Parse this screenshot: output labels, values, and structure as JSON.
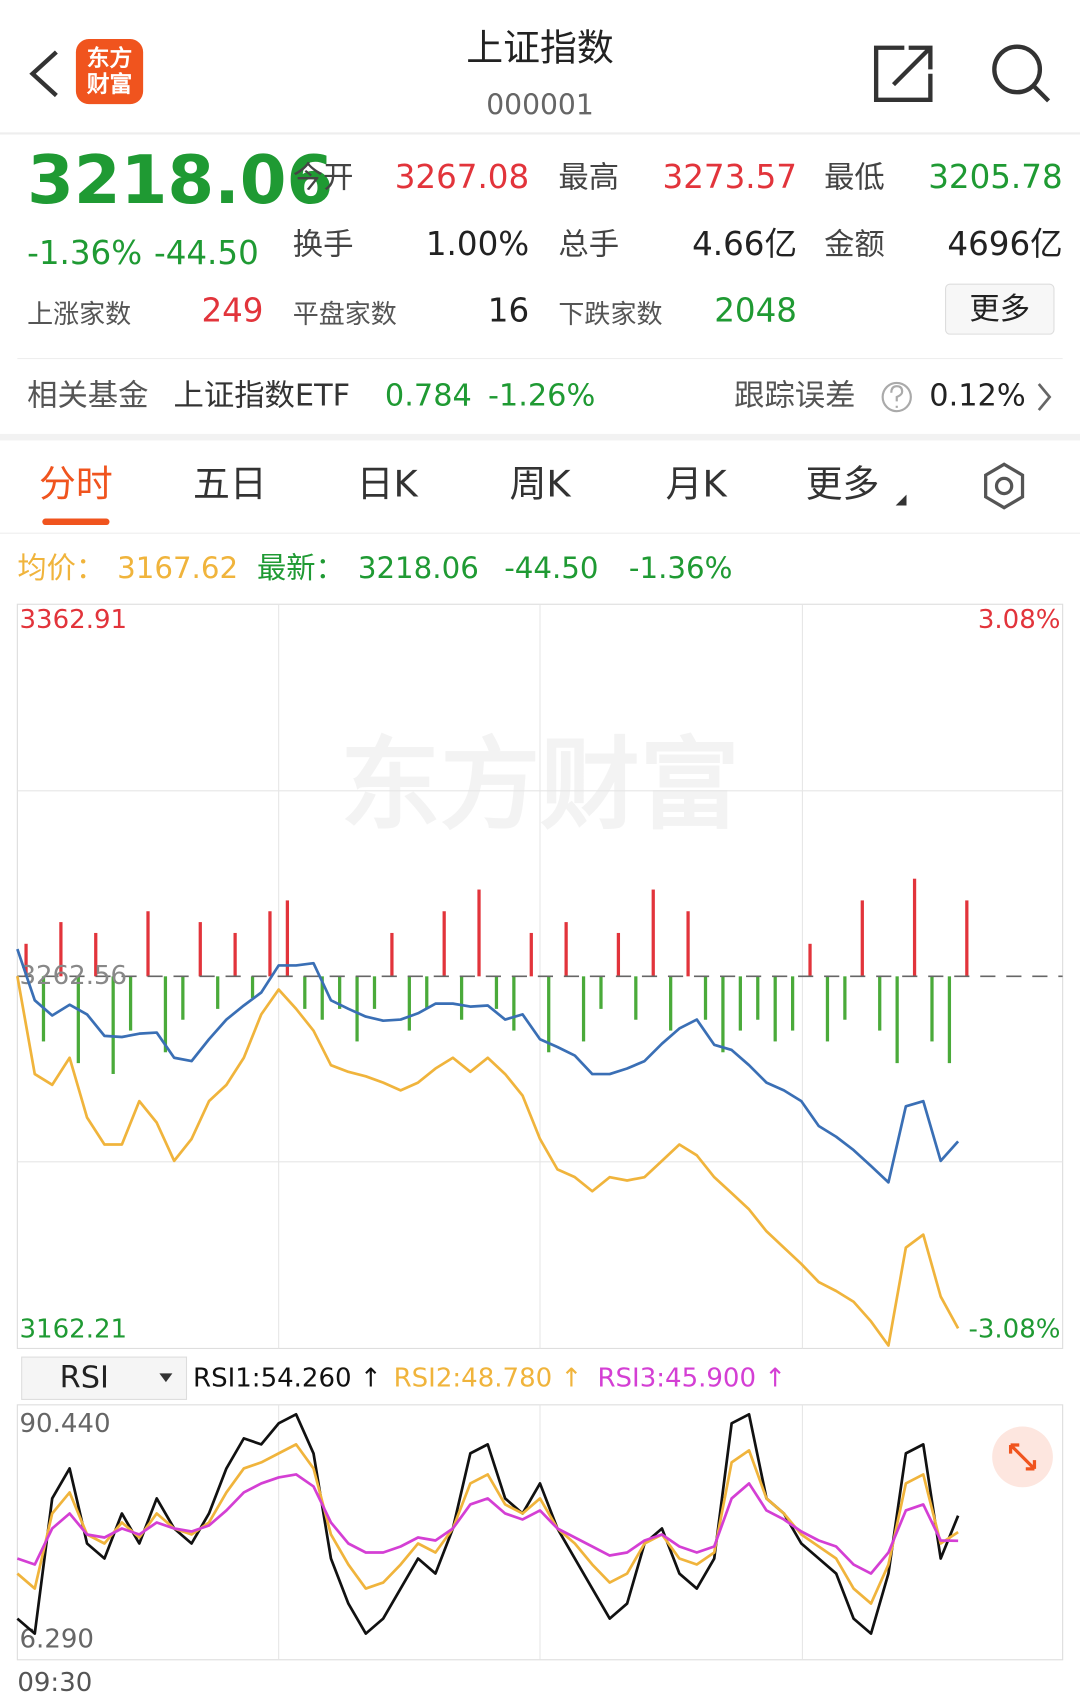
{
  "header": {
    "logo_line1": "东方",
    "logo_line2": "财富",
    "title": "上证指数",
    "code": "000001"
  },
  "quote": {
    "price": "3218.06",
    "change_pct": "-1.36%",
    "change": "-44.50",
    "color": "#1f9a33",
    "stats": [
      {
        "label": "今开",
        "value": "3267.08",
        "color": "#e2343b"
      },
      {
        "label": "最高",
        "value": "3273.57",
        "color": "#e2343b"
      },
      {
        "label": "最低",
        "value": "3205.78",
        "color": "#1f9a33"
      },
      {
        "label": "换手",
        "value": "1.00%",
        "color": "#222222"
      },
      {
        "label": "总手",
        "value": "4.66亿",
        "color": "#222222"
      },
      {
        "label": "金额",
        "value": "4696亿",
        "color": "#222222"
      }
    ],
    "breadth": [
      {
        "label": "上涨家数",
        "value": "249",
        "color": "#e2343b"
      },
      {
        "label": "平盘家数",
        "value": "16",
        "color": "#222222"
      },
      {
        "label": "下跌家数",
        "value": "2048",
        "color": "#1f9a33"
      }
    ],
    "more": "更多"
  },
  "fund": {
    "label": "相关基金",
    "name": "上证指数ETF",
    "price": "0.784",
    "pct": "-1.26%",
    "tracking_label": "跟踪误差",
    "tracking": "0.12%"
  },
  "tabs": {
    "items": [
      "分时",
      "五日",
      "日K",
      "周K",
      "月K",
      "更多"
    ],
    "active": 0
  },
  "legend": {
    "avg_label": "均价：",
    "avg": "3167.62",
    "latest_label": "最新：",
    "latest": "3218.06",
    "change": "-44.50",
    "pct": "-1.36%"
  },
  "watermark": "东方财富",
  "chart_data": [
    {
      "type": "line",
      "x_label": "09:30",
      "ylim": [
        3162.21,
        3362.91
      ],
      "yticks": [
        3362.91,
        3262.56,
        3162.21
      ],
      "ytick_colors": [
        "#e2343b",
        "#888888",
        "#1f9a33"
      ],
      "y2lim": [
        -3.08,
        3.08
      ],
      "y2ticks": [
        {
          "value": 3.08,
          "label": "3.08%"
        },
        {
          "value": -3.08,
          "label": "-3.08%"
        }
      ],
      "y2tick_colors": [
        "#e2343b",
        "#1f9a33"
      ],
      "series": [
        {
          "color": "#3a6fb5",
          "values": [
            3269.9,
            3256.1,
            3252.0,
            3254.9,
            3252.3,
            3246.5,
            3246.2,
            3247.1,
            3247.4,
            3240.6,
            3239.7,
            3245.6,
            3250.9,
            3254.7,
            3258.2,
            3265.5,
            3265.5,
            3266.1,
            3256.1,
            3253.8,
            3251.7,
            3250.6,
            3250.9,
            3252.6,
            3255.2,
            3255.2,
            3254.4,
            3254.7,
            3250.9,
            3252.3,
            3245.6,
            3243.5,
            3241.2,
            3236.2,
            3236.2,
            3237.7,
            3239.7,
            3244.4,
            3248.5,
            3250.9,
            3244.1,
            3242.7,
            3238.6,
            3233.9,
            3231.8,
            3228.9,
            3222.2,
            3219.3,
            3215.7,
            3211.4,
            3207.0,
            3227.5,
            3228.9,
            3212.8,
            3218.06
          ]
        },
        {
          "color": "#f0b43c",
          "values": [
            3262.6,
            3236.2,
            3233.3,
            3240.6,
            3224.5,
            3217.2,
            3217.2,
            3228.9,
            3223.1,
            3212.8,
            3218.7,
            3228.9,
            3233.3,
            3240.6,
            3252.3,
            3259.0,
            3253.8,
            3247.9,
            3238.6,
            3236.8,
            3235.6,
            3233.9,
            3231.8,
            3233.9,
            3237.7,
            3240.6,
            3236.8,
            3240.6,
            3236.2,
            3230.4,
            3218.7,
            3210.5,
            3208.4,
            3204.6,
            3208.4,
            3207.5,
            3208.4,
            3212.8,
            3217.2,
            3214.3,
            3208.4,
            3204.1,
            3199.7,
            3193.8,
            3189.4,
            3185.0,
            3180.1,
            3177.7,
            3174.8,
            3169.5,
            3163.0,
            3189.4,
            3192.9,
            3176.2,
            3167.62
          ]
        }
      ],
      "bar_values": [
        30,
        -60,
        50,
        -80,
        40,
        -90,
        -50,
        60,
        -70,
        -40,
        50,
        -30,
        40,
        -20,
        60,
        70,
        -30,
        -40,
        -30,
        -60,
        -30,
        40,
        -50,
        -30,
        60,
        -40,
        80,
        -30,
        -50,
        40,
        -70,
        50,
        -60,
        -30,
        40,
        -40,
        80,
        -50,
        60,
        -40,
        -70,
        -50,
        -40,
        -60,
        -50,
        30,
        -60,
        -40,
        70,
        -50,
        -80,
        90,
        -60,
        -80,
        70
      ],
      "up_color": "#e2343b",
      "down_color": "#4aaa3a"
    },
    {
      "type": "line",
      "indicator": "RSI",
      "ylim": [
        6.29,
        90.44
      ],
      "yticks": [
        {
          "value": 90.44,
          "label": "90.440"
        },
        {
          "value": 6.29,
          "label": "6.290"
        }
      ],
      "legend": [
        "RSI1:54.260 ↑",
        "RSI2:48.780 ↑",
        "RSI3:45.900 ↑"
      ],
      "series": [
        {
          "color": "#111111",
          "values": [
            20,
            15,
            60,
            70,
            45,
            40,
            55,
            45,
            60,
            50,
            45,
            55,
            70,
            80,
            78,
            85,
            88,
            75,
            40,
            25,
            15,
            20,
            30,
            40,
            35,
            50,
            75,
            78,
            60,
            55,
            65,
            50,
            40,
            30,
            20,
            25,
            45,
            50,
            35,
            30,
            40,
            85,
            88,
            60,
            55,
            45,
            40,
            35,
            20,
            15,
            35,
            75,
            78,
            40,
            54.26
          ]
        },
        {
          "color": "#f0b43c",
          "values": [
            35,
            30,
            55,
            62,
            48,
            45,
            52,
            47,
            55,
            50,
            48,
            52,
            62,
            70,
            72,
            75,
            78,
            70,
            48,
            38,
            30,
            32,
            38,
            45,
            42,
            50,
            65,
            68,
            58,
            55,
            60,
            50,
            45,
            38,
            32,
            35,
            45,
            48,
            40,
            38,
            42,
            72,
            76,
            60,
            55,
            48,
            44,
            40,
            30,
            25,
            38,
            65,
            68,
            45,
            48.78
          ]
        },
        {
          "color": "#d43fd4",
          "values": [
            40,
            38,
            50,
            55,
            48,
            47,
            50,
            48,
            52,
            50,
            49,
            51,
            56,
            62,
            65,
            67,
            68,
            64,
            52,
            45,
            42,
            42,
            44,
            47,
            46,
            50,
            58,
            60,
            55,
            53,
            56,
            50,
            47,
            44,
            41,
            42,
            46,
            48,
            44,
            42,
            44,
            60,
            65,
            56,
            53,
            49,
            46,
            44,
            38,
            35,
            42,
            56,
            58,
            46,
            45.9
          ]
        }
      ]
    }
  ]
}
